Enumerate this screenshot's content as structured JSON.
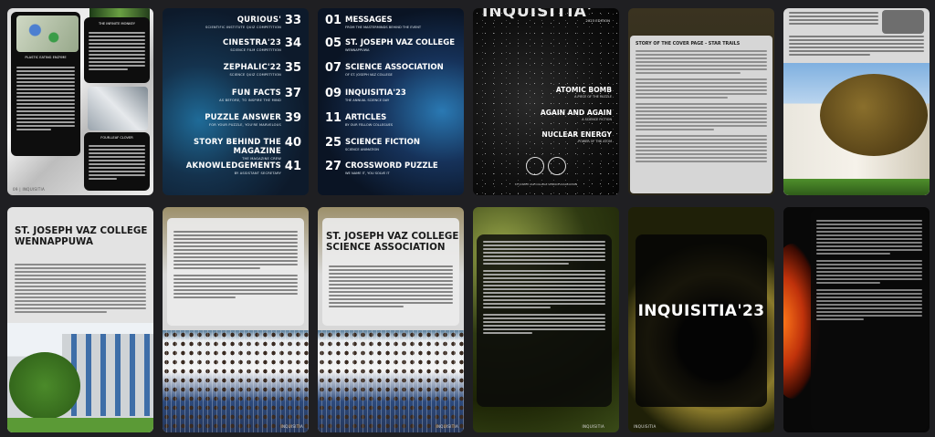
{
  "pages": {
    "p1": {
      "caption1": "PLASTIC EATING ENZYME",
      "caption2": "THE INFINITE MONKEY",
      "caption3": "FOUR-LEAF CLOVER",
      "page_no": "09 | INQUISITIA"
    },
    "contents_left": [
      {
        "title": "QURIOUS'",
        "sub": "SCIENTIFIC INSTITUTE QUIZ COMPETITION",
        "num": "33"
      },
      {
        "title": "CINESTRA'23",
        "sub": "SCIENCE FILM COMPETITION",
        "num": "34"
      },
      {
        "title": "ZEPHALIC'22",
        "sub": "SCIENCE QUIZ COMPETITION",
        "num": "35"
      },
      {
        "title": "FUN FACTS",
        "sub": "AS BEFORE, TO INSPIRE THE MIND",
        "num": "37"
      },
      {
        "title": "PUZZLE ANSWER",
        "sub": "FOR YOUR PUZZLE, YOU'RE MARVELOUS",
        "num": "39"
      },
      {
        "title": "STORY BEHIND THE MAGAZINE",
        "sub": "THE MAGAZINE CREW",
        "num": "40"
      },
      {
        "title": "AKNOWLEDGEMENTS",
        "sub": "BY ASSISTANT SECRETARY",
        "num": "41"
      }
    ],
    "contents_right": [
      {
        "num": "01",
        "title": "MESSAGES",
        "sub": "FROM THE MASTERMINDS BEHIND THE EVENT"
      },
      {
        "num": "05",
        "title": "ST. JOSEPH VAZ COLLEGE",
        "sub": "WENNAPPUWA"
      },
      {
        "num": "07",
        "title": "SCIENCE ASSOCIATION",
        "sub": "OF ST. JOSEPH VAZ COLLEGE"
      },
      {
        "num": "09",
        "title": "INQUISITIA'23",
        "sub": "THE ANNUAL SCIENCE DAY"
      },
      {
        "num": "11",
        "title": "ARTICLES",
        "sub": "BY OUR FELLOW COLLEGUES"
      },
      {
        "num": "25",
        "title": "SCIENCE FICTION",
        "sub": "SCIENCE ANIMATION"
      },
      {
        "num": "27",
        "title": "CROSSWORD PUZZLE",
        "sub": "WE NAME IT, YOU SOLVE IT"
      }
    ],
    "cover": {
      "title": "INQUISITIA'",
      "edition": "2023 EDITION",
      "items": [
        {
          "title": "ATOMIC BOMB",
          "sub": "A PIECE OF THE PUZZLE"
        },
        {
          "title": "AGAIN AND AGAIN",
          "sub": "A SCIENCE FICTION"
        },
        {
          "title": "NUCLEAR ENERGY",
          "sub": "POWER OF THE ATOM"
        }
      ],
      "footer": "ST. JOSEPH VAZ COLLEGE SCIENCE ASSOCIATION"
    },
    "story": {
      "title": "STORY OF THE COVER PAGE - STAR TRAILS"
    },
    "school": {
      "title": "ST. JOSEPH VAZ COLLEGE WENNAPPUWA"
    },
    "assoc": {
      "title": "ST. JOSEPH VAZ COLLEGE SCIENCE ASSOCIATION"
    },
    "brand": {
      "title": "INQUISITIA'23"
    },
    "page_footer": "INQUISITIA"
  }
}
